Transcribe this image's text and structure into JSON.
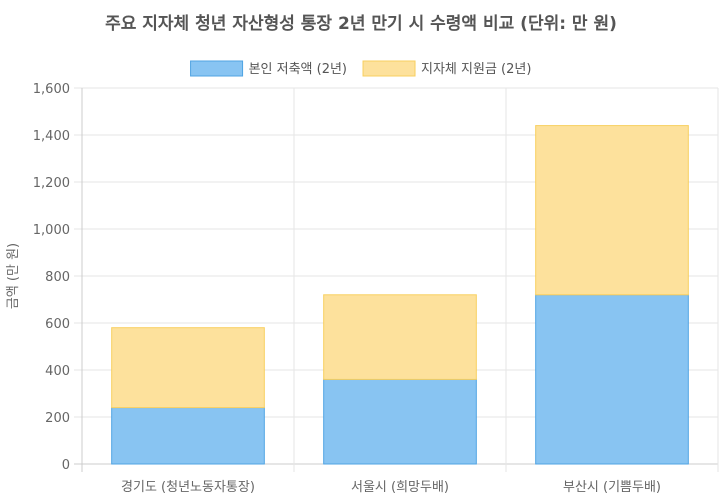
{
  "chart_data": {
    "type": "bar",
    "stacked": true,
    "title": "주요 지자체 청년 자산형성 통장 2년 만기 시 수령액 비교 (단위: 만 원)",
    "xlabel": "",
    "ylabel": "금액 (만 원)",
    "categories": [
      "경기도 (청년노동자통장)",
      "서울시 (희망두배)",
      "부산시 (기쁨두배)"
    ],
    "series": [
      {
        "name": "본인 저축액 (2년)",
        "values": [
          240,
          360,
          720
        ],
        "color": "#88c4f2",
        "border": "#4fa3e3"
      },
      {
        "name": "지자체 지원금 (2년)",
        "values": [
          340,
          360,
          720
        ],
        "color": "#fde19c",
        "border": "#f8cf5f"
      }
    ],
    "ylim": [
      0,
      1600
    ],
    "yticks": [
      0,
      200,
      400,
      600,
      800,
      1000,
      1200,
      1400,
      1600
    ],
    "ytick_labels": [
      "0",
      "200",
      "400",
      "600",
      "800",
      "1,000",
      "1,200",
      "1,400",
      "1,600"
    ],
    "grid": true,
    "legend": "top"
  }
}
